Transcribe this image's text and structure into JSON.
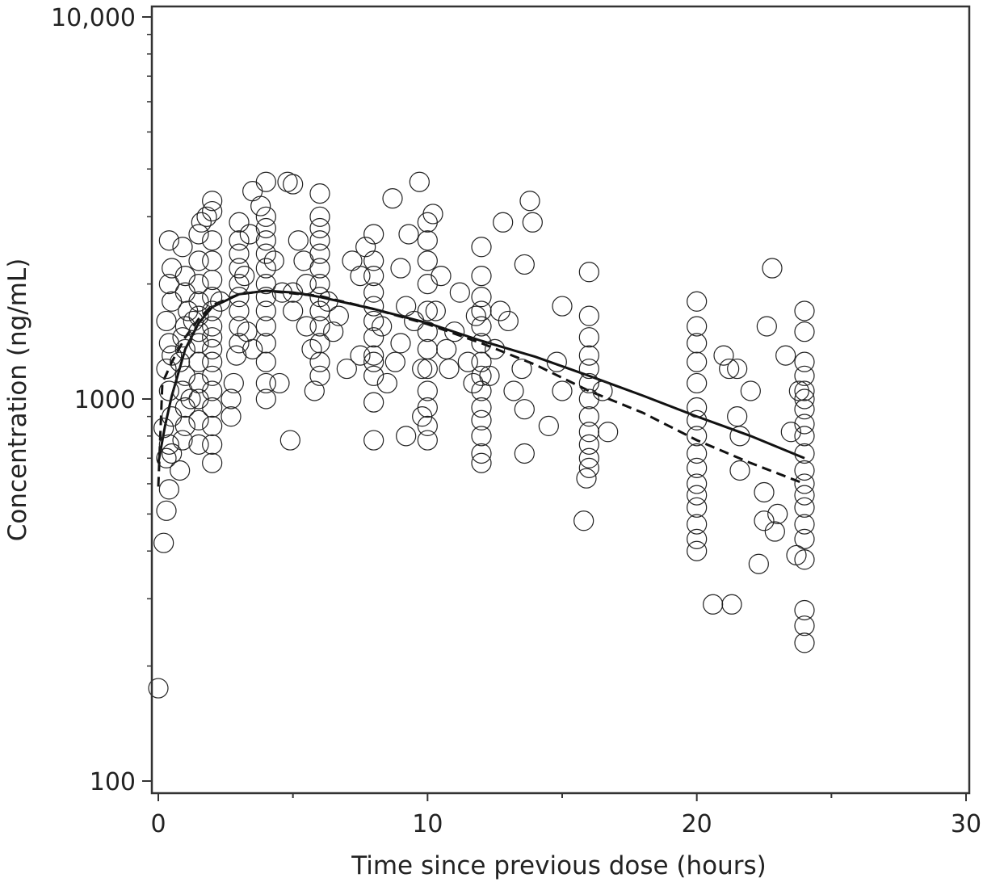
{
  "chart_data": {
    "type": "scatter",
    "title": "",
    "xlabel": "Time since previous dose (hours)",
    "ylabel": "Concentration (ng/mL)",
    "xlim": [
      0,
      30
    ],
    "ylim": [
      100,
      10000
    ],
    "yscale": "log",
    "grid": false,
    "x_ticks": [
      {
        "v": 0,
        "label": "0"
      },
      {
        "v": 10,
        "label": "10"
      },
      {
        "v": 20,
        "label": "20"
      },
      {
        "v": 30,
        "label": "30"
      }
    ],
    "x_minor_ticks": [
      5,
      15,
      25
    ],
    "y_ticks": [
      {
        "v": 100,
        "label": "100"
      },
      {
        "v": 1000,
        "label": "1000"
      },
      {
        "v": 10000,
        "label": "10,000"
      }
    ],
    "series": [
      {
        "name": "solid-line",
        "style": "solid",
        "points": [
          [
            0,
            680
          ],
          [
            0.25,
            850
          ],
          [
            0.5,
            1020
          ],
          [
            1,
            1350
          ],
          [
            1.5,
            1580
          ],
          [
            2,
            1740
          ],
          [
            3,
            1880
          ],
          [
            4,
            1920
          ],
          [
            5,
            1900
          ],
          [
            6,
            1850
          ],
          [
            8,
            1720
          ],
          [
            10,
            1580
          ],
          [
            12,
            1420
          ],
          [
            14,
            1290
          ],
          [
            16,
            1150
          ],
          [
            18,
            1020
          ],
          [
            20,
            900
          ],
          [
            22,
            800
          ],
          [
            24,
            700
          ]
        ]
      },
      {
        "name": "dashed-line",
        "style": "dashed",
        "points": [
          [
            0,
            590
          ],
          [
            0.15,
            1100
          ],
          [
            0.5,
            1250
          ],
          [
            1,
            1450
          ],
          [
            1.5,
            1620
          ],
          [
            2,
            1760
          ],
          [
            3,
            1880
          ],
          [
            4,
            1920
          ],
          [
            6,
            1860
          ],
          [
            8,
            1720
          ],
          [
            10,
            1570
          ],
          [
            12,
            1400
          ],
          [
            14,
            1230
          ],
          [
            16,
            1050
          ],
          [
            18,
            920
          ],
          [
            20,
            780
          ],
          [
            22,
            680
          ],
          [
            24,
            600
          ]
        ]
      },
      {
        "name": "observations",
        "style": "circle",
        "points": [
          [
            0,
            175
          ],
          [
            0.2,
            420
          ],
          [
            0.3,
            510
          ],
          [
            0.4,
            580
          ],
          [
            0.3,
            700
          ],
          [
            0.5,
            720
          ],
          [
            0.4,
            760
          ],
          [
            0.2,
            840
          ],
          [
            0.5,
            900
          ],
          [
            0.4,
            1050
          ],
          [
            0.3,
            1200
          ],
          [
            0.5,
            1300
          ],
          [
            0.4,
            1400
          ],
          [
            0.3,
            1600
          ],
          [
            0.5,
            1800
          ],
          [
            0.4,
            2000
          ],
          [
            0.5,
            2200
          ],
          [
            0.4,
            2600
          ],
          [
            0.8,
            650
          ],
          [
            0.9,
            780
          ],
          [
            1,
            850
          ],
          [
            1,
            950
          ],
          [
            0.9,
            1050
          ],
          [
            1,
            1150
          ],
          [
            0.8,
            1250
          ],
          [
            1,
            1350
          ],
          [
            0.9,
            1450
          ],
          [
            1,
            1550
          ],
          [
            1.1,
            1700
          ],
          [
            1,
            1900
          ],
          [
            1,
            2100
          ],
          [
            0.9,
            2500
          ],
          [
            1.2,
            1000
          ],
          [
            1.3,
            1600
          ],
          [
            1.5,
            760
          ],
          [
            1.5,
            880
          ],
          [
            1.5,
            1000
          ],
          [
            1.5,
            1100
          ],
          [
            1.5,
            1250
          ],
          [
            1.5,
            1400
          ],
          [
            1.5,
            1500
          ],
          [
            1.5,
            1650
          ],
          [
            1.5,
            1800
          ],
          [
            1.5,
            2000
          ],
          [
            1.5,
            2300
          ],
          [
            1.5,
            2700
          ],
          [
            1.6,
            2900
          ],
          [
            1.8,
            3000
          ],
          [
            2,
            680
          ],
          [
            2,
            760
          ],
          [
            2,
            850
          ],
          [
            2,
            950
          ],
          [
            2,
            1050
          ],
          [
            2,
            1150
          ],
          [
            2,
            1250
          ],
          [
            2,
            1350
          ],
          [
            2,
            1450
          ],
          [
            2,
            1550
          ],
          [
            2,
            1700
          ],
          [
            2,
            1850
          ],
          [
            2,
            2050
          ],
          [
            2,
            2300
          ],
          [
            2,
            2600
          ],
          [
            2,
            3100
          ],
          [
            2,
            3300
          ],
          [
            2.3,
            1800
          ],
          [
            2.7,
            900
          ],
          [
            2.8,
            1100
          ],
          [
            2.9,
            1300
          ],
          [
            3,
            1400
          ],
          [
            3,
            1550
          ],
          [
            3,
            1700
          ],
          [
            3,
            1850
          ],
          [
            3,
            2000
          ],
          [
            3,
            2200
          ],
          [
            3,
            2400
          ],
          [
            3,
            2600
          ],
          [
            3,
            2900
          ],
          [
            3.2,
            2100
          ],
          [
            3.3,
            1500
          ],
          [
            3.5,
            1350
          ],
          [
            3.5,
            3500
          ],
          [
            3.4,
            2700
          ],
          [
            2.7,
            1000
          ],
          [
            4,
            1000
          ],
          [
            4,
            1100
          ],
          [
            4,
            1250
          ],
          [
            4,
            1400
          ],
          [
            4,
            1550
          ],
          [
            4,
            1700
          ],
          [
            4,
            1850
          ],
          [
            4,
            2000
          ],
          [
            4,
            2200
          ],
          [
            4,
            2400
          ],
          [
            4,
            2600
          ],
          [
            4,
            2800
          ],
          [
            4,
            3000
          ],
          [
            4,
            3700
          ],
          [
            3.8,
            3200
          ],
          [
            4.5,
            1100
          ],
          [
            4.3,
            2300
          ],
          [
            4.6,
            1900
          ],
          [
            4.8,
            3700
          ],
          [
            5,
            3650
          ],
          [
            5,
            1700
          ],
          [
            5,
            1900
          ],
          [
            4.9,
            780
          ],
          [
            5.2,
            2600
          ],
          [
            5.4,
            2300
          ],
          [
            5.5,
            1550
          ],
          [
            5.5,
            2000
          ],
          [
            5.8,
            1050
          ],
          [
            5.7,
            1350
          ],
          [
            6,
            1150
          ],
          [
            6,
            1250
          ],
          [
            6,
            1400
          ],
          [
            6,
            1550
          ],
          [
            6,
            1700
          ],
          [
            6,
            1850
          ],
          [
            6,
            2000
          ],
          [
            6,
            2200
          ],
          [
            6,
            2400
          ],
          [
            6,
            2600
          ],
          [
            6,
            2800
          ],
          [
            6,
            3000
          ],
          [
            6,
            3450
          ],
          [
            6.3,
            1800
          ],
          [
            6.5,
            1500
          ],
          [
            6.7,
            1650
          ],
          [
            7,
            1200
          ],
          [
            7.2,
            2300
          ],
          [
            7.5,
            1300
          ],
          [
            7.5,
            2100
          ],
          [
            7.7,
            2500
          ],
          [
            8,
            780
          ],
          [
            8,
            980
          ],
          [
            8,
            1150
          ],
          [
            8,
            1250
          ],
          [
            8,
            1300
          ],
          [
            8,
            1450
          ],
          [
            8,
            1600
          ],
          [
            8,
            1750
          ],
          [
            8,
            1900
          ],
          [
            8,
            2100
          ],
          [
            8,
            2300
          ],
          [
            8,
            2700
          ],
          [
            8.3,
            1550
          ],
          [
            8.5,
            1100
          ],
          [
            8.7,
            3350
          ],
          [
            8.8,
            1250
          ],
          [
            9,
            2200
          ],
          [
            9,
            1400
          ],
          [
            9.2,
            1750
          ],
          [
            9.3,
            2700
          ],
          [
            9.5,
            1600
          ],
          [
            9.2,
            800
          ],
          [
            9.7,
            3700
          ],
          [
            9.8,
            900
          ],
          [
            9.8,
            1200
          ],
          [
            10,
            780
          ],
          [
            10,
            850
          ],
          [
            10,
            950
          ],
          [
            10,
            1050
          ],
          [
            10,
            1200
          ],
          [
            10,
            1350
          ],
          [
            10,
            1500
          ],
          [
            10,
            1700
          ],
          [
            10,
            2000
          ],
          [
            10,
            2300
          ],
          [
            10,
            2600
          ],
          [
            10,
            2900
          ],
          [
            10.2,
            3050
          ],
          [
            10.3,
            1700
          ],
          [
            10.5,
            2100
          ],
          [
            10.7,
            1350
          ],
          [
            10.8,
            1200
          ],
          [
            11,
            1500
          ],
          [
            11.2,
            1900
          ],
          [
            11.5,
            1250
          ],
          [
            11.7,
            1100
          ],
          [
            11.8,
            1650
          ],
          [
            12,
            680
          ],
          [
            12,
            720
          ],
          [
            12,
            800
          ],
          [
            12,
            880
          ],
          [
            12,
            950
          ],
          [
            12,
            1050
          ],
          [
            12,
            1150
          ],
          [
            12,
            1250
          ],
          [
            12,
            1400
          ],
          [
            12,
            1550
          ],
          [
            12,
            1700
          ],
          [
            12,
            1850
          ],
          [
            12,
            2100
          ],
          [
            12,
            2500
          ],
          [
            12.3,
            1150
          ],
          [
            12.5,
            1350
          ],
          [
            12.7,
            1700
          ],
          [
            12.8,
            2900
          ],
          [
            13,
            1600
          ],
          [
            13.2,
            1050
          ],
          [
            13.5,
            1200
          ],
          [
            13.6,
            720
          ],
          [
            13.6,
            940
          ],
          [
            13.6,
            2250
          ],
          [
            13.8,
            3300
          ],
          [
            13.9,
            2900
          ],
          [
            14.5,
            850
          ],
          [
            14.8,
            1250
          ],
          [
            15,
            1050
          ],
          [
            15,
            1750
          ],
          [
            15.8,
            480
          ],
          [
            15.9,
            620
          ],
          [
            16,
            660
          ],
          [
            16,
            700
          ],
          [
            16,
            760
          ],
          [
            16,
            820
          ],
          [
            16,
            900
          ],
          [
            16,
            1000
          ],
          [
            16,
            1100
          ],
          [
            16,
            1200
          ],
          [
            16,
            1300
          ],
          [
            16,
            1450
          ],
          [
            16,
            1650
          ],
          [
            16,
            2150
          ],
          [
            16.5,
            1050
          ],
          [
            16.7,
            820
          ],
          [
            20,
            400
          ],
          [
            20,
            430
          ],
          [
            20,
            470
          ],
          [
            20,
            520
          ],
          [
            20,
            560
          ],
          [
            20,
            600
          ],
          [
            20,
            660
          ],
          [
            20,
            720
          ],
          [
            20,
            800
          ],
          [
            20,
            880
          ],
          [
            20,
            950
          ],
          [
            20,
            1100
          ],
          [
            20,
            1250
          ],
          [
            20,
            1400
          ],
          [
            20,
            1550
          ],
          [
            20,
            1800
          ],
          [
            20.6,
            290
          ],
          [
            21,
            1300
          ],
          [
            21.2,
            1200
          ],
          [
            21.3,
            290
          ],
          [
            21.5,
            900
          ],
          [
            21.5,
            1200
          ],
          [
            21.6,
            800
          ],
          [
            21.6,
            650
          ],
          [
            22,
            1050
          ],
          [
            22.3,
            370
          ],
          [
            22.5,
            570
          ],
          [
            22.5,
            480
          ],
          [
            22.6,
            1550
          ],
          [
            22.8,
            2200
          ],
          [
            22.9,
            450
          ],
          [
            23,
            500
          ],
          [
            23.3,
            1300
          ],
          [
            23.5,
            820
          ],
          [
            23.7,
            390
          ],
          [
            23.8,
            1050
          ],
          [
            24,
            230
          ],
          [
            24,
            255
          ],
          [
            24,
            280
          ],
          [
            24,
            380
          ],
          [
            24,
            430
          ],
          [
            24,
            470
          ],
          [
            24,
            520
          ],
          [
            24,
            560
          ],
          [
            24,
            600
          ],
          [
            24,
            650
          ],
          [
            24,
            720
          ],
          [
            24,
            800
          ],
          [
            24,
            860
          ],
          [
            24,
            940
          ],
          [
            24,
            1000
          ],
          [
            24,
            1050
          ],
          [
            24,
            1150
          ],
          [
            24,
            1250
          ],
          [
            24,
            1500
          ],
          [
            24,
            1700
          ]
        ]
      }
    ]
  }
}
